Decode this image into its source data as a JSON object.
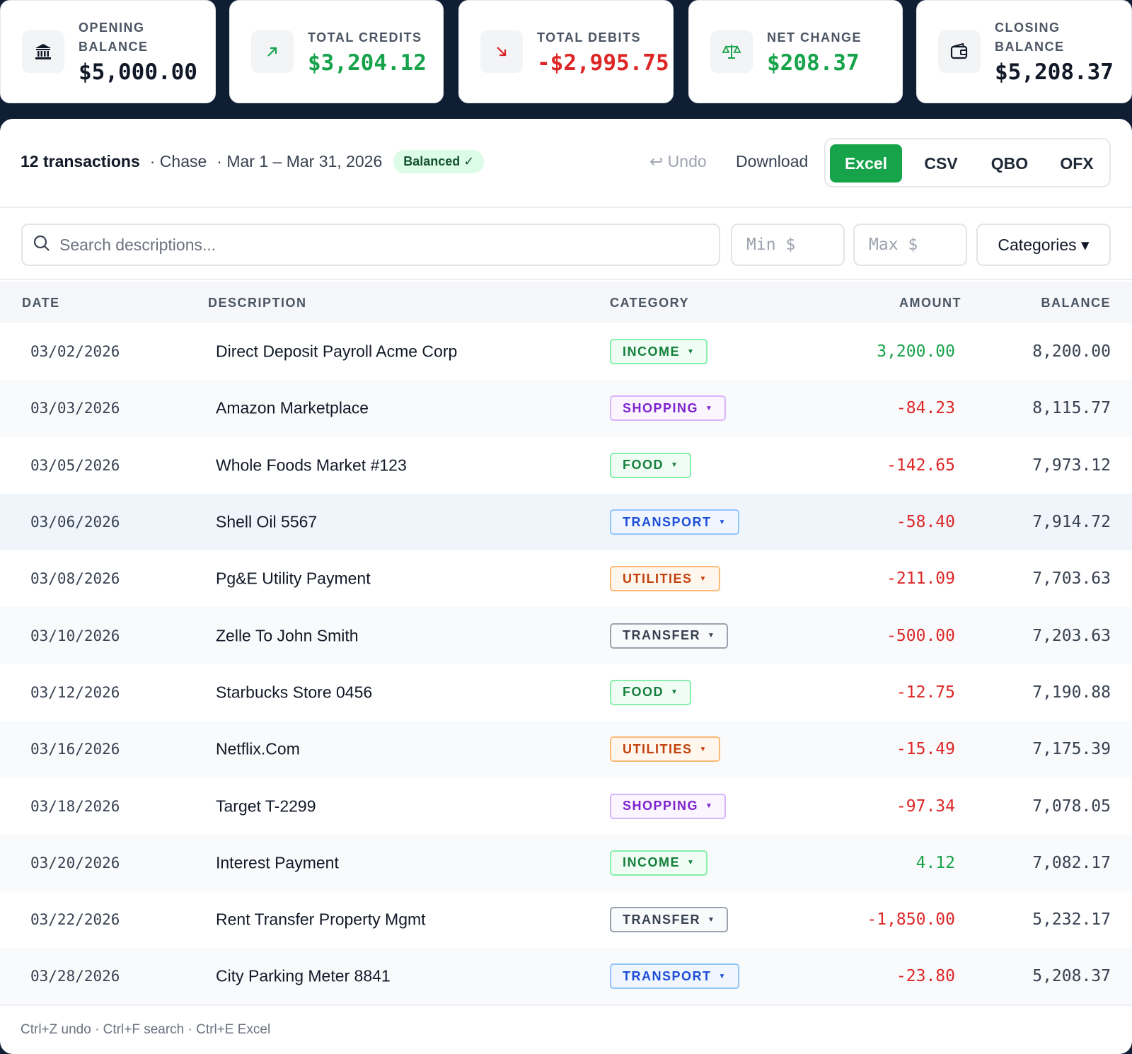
{
  "summary": {
    "opening": {
      "label_line1": "OPENING",
      "label_line2": "BALANCE",
      "value": "$5,000.00",
      "icon": "bank-icon"
    },
    "credits": {
      "label": "TOTAL CREDITS",
      "value": "$3,204.12",
      "icon": "arrow-up-right-icon"
    },
    "debits": {
      "label": "TOTAL DEBITS",
      "value": "-$2,995.75",
      "icon": "arrow-down-right-icon"
    },
    "net": {
      "label": "NET CHANGE",
      "value": "$208.37",
      "icon": "scale-icon"
    },
    "closing": {
      "label_line1": "CLOSING",
      "label_line2": "BALANCE",
      "value": "$5,208.37",
      "icon": "wallet-icon"
    }
  },
  "colors": {
    "positive": "#16a34a",
    "negative": "#dc2626",
    "accent": "#16a34a",
    "background": "#0f1e33"
  },
  "toolbar": {
    "count": "12 transactions",
    "bank": "· Chase",
    "period": "· Mar 1 – Mar 31, 2026",
    "status": "Balanced ✓",
    "undo": "↩ Undo",
    "download": "Download",
    "formats": [
      "Excel",
      "CSV",
      "QBO",
      "OFX"
    ],
    "active_format": "Excel"
  },
  "filters": {
    "search_placeholder": "Search descriptions...",
    "min_placeholder": "Min $",
    "max_placeholder": "Max $",
    "categories_label": "Categories ▾"
  },
  "table": {
    "headers": {
      "date": "DATE",
      "description": "DESCRIPTION",
      "category": "CATEGORY",
      "amount": "AMOUNT",
      "balance": "BALANCE"
    },
    "rows": [
      {
        "date": "03/02/2026",
        "description": "Direct Deposit Payroll Acme Corp",
        "category": "INCOME",
        "amount": "3,200.00",
        "balance": "8,200.00"
      },
      {
        "date": "03/03/2026",
        "description": "Amazon Marketplace",
        "category": "SHOPPING",
        "amount": "-84.23",
        "balance": "8,115.77"
      },
      {
        "date": "03/05/2026",
        "description": "Whole Foods Market #123",
        "category": "FOOD",
        "amount": "-142.65",
        "balance": "7,973.12"
      },
      {
        "date": "03/06/2026",
        "description": "Shell Oil 5567",
        "category": "TRANSPORT",
        "amount": "-58.40",
        "balance": "7,914.72"
      },
      {
        "date": "03/08/2026",
        "description": "Pg&E Utility Payment",
        "category": "UTILITIES",
        "amount": "-211.09",
        "balance": "7,703.63"
      },
      {
        "date": "03/10/2026",
        "description": "Zelle To John Smith",
        "category": "TRANSFER",
        "amount": "-500.00",
        "balance": "7,203.63"
      },
      {
        "date": "03/12/2026",
        "description": "Starbucks Store 0456",
        "category": "FOOD",
        "amount": "-12.75",
        "balance": "7,190.88"
      },
      {
        "date": "03/16/2026",
        "description": "Netflix.Com",
        "category": "UTILITIES",
        "amount": "-15.49",
        "balance": "7,175.39"
      },
      {
        "date": "03/18/2026",
        "description": "Target T-2299",
        "category": "SHOPPING",
        "amount": "-97.34",
        "balance": "7,078.05"
      },
      {
        "date": "03/20/2026",
        "description": "Interest Payment",
        "category": "INCOME",
        "amount": "4.12",
        "balance": "7,082.17"
      },
      {
        "date": "03/22/2026",
        "description": "Rent Transfer Property Mgmt",
        "category": "TRANSFER",
        "amount": "-1,850.00",
        "balance": "5,232.17"
      },
      {
        "date": "03/28/2026",
        "description": "City Parking Meter 8841",
        "category": "TRANSPORT",
        "amount": "-23.80",
        "balance": "5,208.37"
      }
    ]
  },
  "category_styles": {
    "INCOME": {
      "text": "#15803d",
      "bg": "#f0fdf4",
      "border": "#86efac"
    },
    "SHOPPING": {
      "text": "#7e22ce",
      "bg": "#faf5ff",
      "border": "#d8b4fe"
    },
    "FOOD": {
      "text": "#15803d",
      "bg": "#f0fdf4",
      "border": "#86efac"
    },
    "TRANSPORT": {
      "text": "#1d4ed8",
      "bg": "#eff6ff",
      "border": "#93c5fd"
    },
    "UTILITIES": {
      "text": "#c2410c",
      "bg": "#fff7ed",
      "border": "#fdba74"
    },
    "TRANSFER": {
      "text": "#374151",
      "bg": "#f9fafb",
      "border": "#9ca3af"
    }
  },
  "footer": {
    "shortcuts": "Ctrl+Z undo · Ctrl+F search · Ctrl+E Excel"
  }
}
